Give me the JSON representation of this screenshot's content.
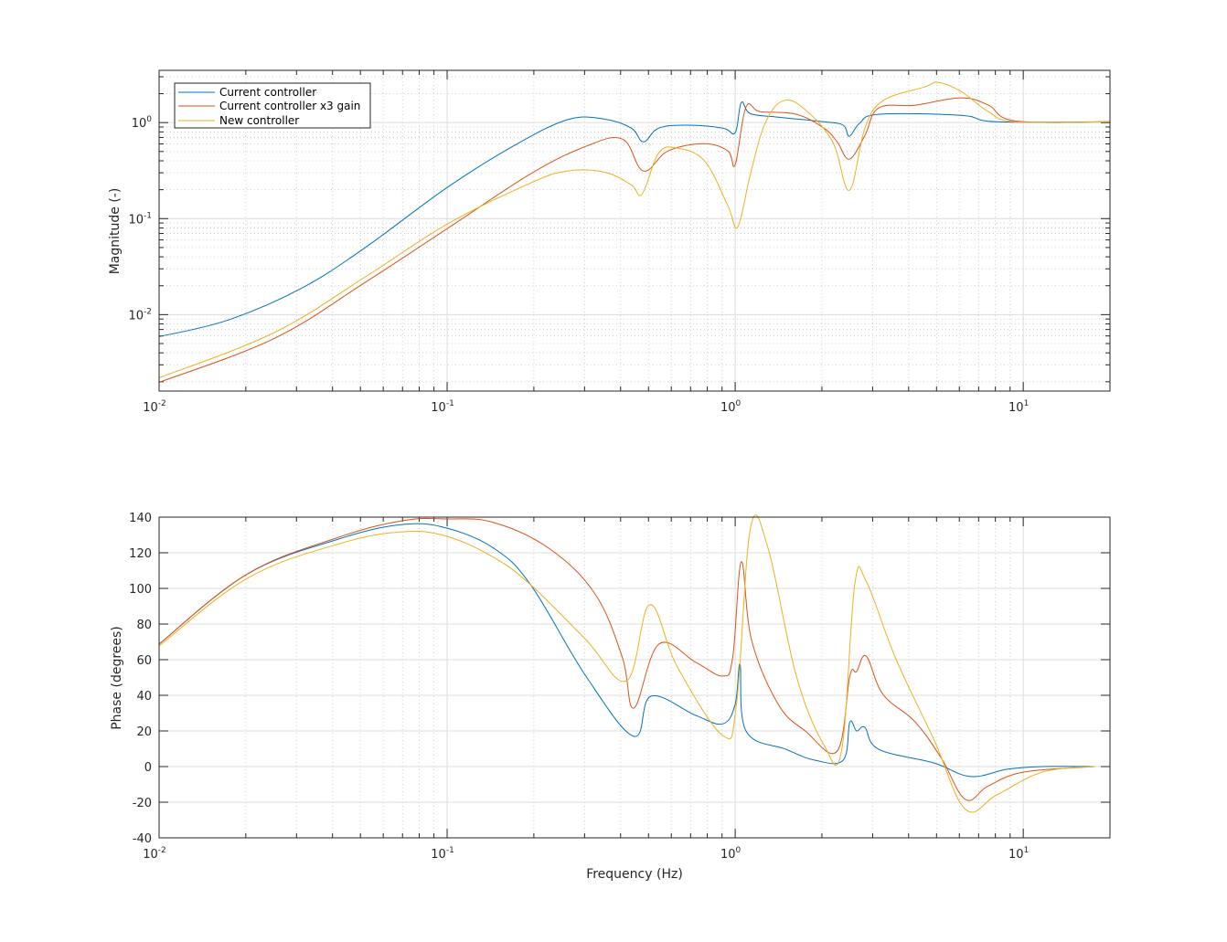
{
  "chart_data": [
    {
      "type": "line",
      "xscale": "log",
      "yscale": "log",
      "xlim": [
        0.01,
        20
      ],
      "ylim": [
        0.0016,
        3.5
      ],
      "xlabel": "",
      "ylabel": "Magnitude (-)",
      "grid": true,
      "legend_placement": "top-left",
      "xticks": [
        {
          "base": "10",
          "exp": "-2",
          "value": 0.01
        },
        {
          "base": "10",
          "exp": "-1",
          "value": 0.1
        },
        {
          "base": "10",
          "exp": "0",
          "value": 1
        },
        {
          "base": "10",
          "exp": "1",
          "value": 10
        }
      ],
      "yticks": [
        {
          "base": "10",
          "exp": "-2",
          "value": 0.01
        },
        {
          "base": "10",
          "exp": "-1",
          "value": 0.1
        },
        {
          "base": "10",
          "exp": "0",
          "value": 1
        }
      ],
      "series": [
        {
          "name": "Current controller",
          "color": "#0072BD",
          "points": [
            [
              0.01,
              0.0059
            ],
            [
              0.0174,
              0.0088
            ],
            [
              0.0313,
              0.0189
            ],
            [
              0.0523,
              0.0507
            ],
            [
              0.1,
              0.211
            ],
            [
              0.169,
              0.565
            ],
            [
              0.261,
              1.07
            ],
            [
              0.35,
              1.09
            ],
            [
              0.436,
              0.877
            ],
            [
              0.48,
              0.63
            ],
            [
              0.543,
              0.877
            ],
            [
              0.685,
              0.94
            ],
            [
              0.906,
              0.877
            ],
            [
              1.0,
              0.786
            ],
            [
              1.05,
              1.62
            ],
            [
              1.13,
              1.24
            ],
            [
              1.41,
              1.14
            ],
            [
              2.03,
              1.02
            ],
            [
              2.37,
              0.94
            ],
            [
              2.49,
              0.72
            ],
            [
              2.7,
              0.98
            ],
            [
              3.15,
              1.22
            ],
            [
              6.08,
              1.19
            ],
            [
              8.1,
              1.02
            ],
            [
              20,
              1.02
            ]
          ]
        },
        {
          "name": "Current controller x3 gain",
          "color": "#D95319",
          "points": [
            [
              0.01,
              0.00197
            ],
            [
              0.0251,
              0.00565
            ],
            [
              0.0523,
              0.022
            ],
            [
              0.1,
              0.0786
            ],
            [
              0.195,
              0.293
            ],
            [
              0.303,
              0.565
            ],
            [
              0.406,
              0.674
            ],
            [
              0.48,
              0.313
            ],
            [
              0.585,
              0.507
            ],
            [
              0.783,
              0.604
            ],
            [
              0.943,
              0.507
            ],
            [
              1.0,
              0.365
            ],
            [
              1.09,
              1.45
            ],
            [
              1.22,
              1.3
            ],
            [
              1.63,
              1.22
            ],
            [
              2.03,
              0.877
            ],
            [
              2.26,
              0.63
            ],
            [
              2.49,
              0.416
            ],
            [
              2.82,
              0.736
            ],
            [
              3.15,
              1.42
            ],
            [
              4.22,
              1.52
            ],
            [
              6.08,
              1.81
            ],
            [
              7.57,
              1.52
            ],
            [
              9.4,
              1.04
            ],
            [
              20,
              1.02
            ]
          ]
        },
        {
          "name": "New controller",
          "color": "#EDB120",
          "points": [
            [
              0.01,
              0.0022
            ],
            [
              0.0251,
              0.0065
            ],
            [
              0.0523,
              0.025
            ],
            [
              0.1,
              0.0877
            ],
            [
              0.195,
              0.235
            ],
            [
              0.261,
              0.313
            ],
            [
              0.35,
              0.306
            ],
            [
              0.436,
              0.225
            ],
            [
              0.475,
              0.18
            ],
            [
              0.543,
              0.485
            ],
            [
              0.63,
              0.54
            ],
            [
              0.783,
              0.398
            ],
            [
              0.943,
              0.136
            ],
            [
              1.02,
              0.082
            ],
            [
              1.13,
              0.293
            ],
            [
              1.27,
              0.98
            ],
            [
              1.47,
              1.69
            ],
            [
              1.75,
              1.36
            ],
            [
              2.18,
              0.63
            ],
            [
              2.49,
              0.197
            ],
            [
              2.82,
              0.877
            ],
            [
              3.26,
              1.69
            ],
            [
              4.54,
              2.35
            ],
            [
              5.07,
              2.62
            ],
            [
              6.08,
              2.11
            ],
            [
              7.57,
              1.3
            ],
            [
              9.4,
              1.02
            ],
            [
              20,
              1.02
            ]
          ]
        }
      ]
    },
    {
      "type": "line",
      "xscale": "log",
      "yscale": "linear",
      "xlim": [
        0.01,
        20
      ],
      "ylim": [
        -40,
        140
      ],
      "xlabel": "Frequency (Hz)",
      "ylabel": "Phase (degrees)",
      "grid": true,
      "xticks": [
        {
          "base": "10",
          "exp": "-2",
          "value": 0.01
        },
        {
          "base": "10",
          "exp": "-1",
          "value": 0.1
        },
        {
          "base": "10",
          "exp": "0",
          "value": 1
        },
        {
          "base": "10",
          "exp": "1",
          "value": 10
        }
      ],
      "yticks": [
        "-40",
        "-20",
        "0",
        "20",
        "40",
        "60",
        "80",
        "100",
        "120",
        "140"
      ],
      "series": [
        {
          "name": "Current controller",
          "color": "#0072BD",
          "points": [
            [
              0.01,
              68.7
            ],
            [
              0.0202,
              108
            ],
            [
              0.042,
              127.7
            ],
            [
              0.0702,
              135.9
            ],
            [
              0.1,
              133.8
            ],
            [
              0.145,
              122.6
            ],
            [
              0.195,
              102
            ],
            [
              0.303,
              50.8
            ],
            [
              0.445,
              17
            ],
            [
              0.51,
              39.5
            ],
            [
              0.73,
              28.7
            ],
            [
              0.906,
              24
            ],
            [
              1.0,
              35
            ],
            [
              1.04,
              57.4
            ],
            [
              1.09,
              20
            ],
            [
              1.5,
              9.7
            ],
            [
              1.89,
              3.6
            ],
            [
              2.37,
              3.6
            ],
            [
              2.5,
              25
            ],
            [
              2.64,
              20
            ],
            [
              2.82,
              22
            ],
            [
              3.15,
              9.7
            ],
            [
              4.9,
              2
            ],
            [
              6.56,
              -5.6
            ],
            [
              8.8,
              -1.5
            ],
            [
              11.7,
              0
            ],
            [
              17.7,
              0
            ]
          ]
        },
        {
          "name": "Current controller x3 gain",
          "color": "#D95319",
          "points": [
            [
              0.01,
              68.7
            ],
            [
              0.0202,
              108
            ],
            [
              0.042,
              128.7
            ],
            [
              0.0702,
              138
            ],
            [
              0.1,
              139
            ],
            [
              0.145,
              137
            ],
            [
              0.225,
              122.6
            ],
            [
              0.326,
              97
            ],
            [
              0.406,
              61
            ],
            [
              0.445,
              32.8
            ],
            [
              0.543,
              68.7
            ],
            [
              0.73,
              58.5
            ],
            [
              0.906,
              50.8
            ],
            [
              0.98,
              61
            ],
            [
              1.05,
              114.9
            ],
            [
              1.14,
              71
            ],
            [
              1.41,
              35
            ],
            [
              1.75,
              20
            ],
            [
              2.26,
              8.7
            ],
            [
              2.5,
              50.8
            ],
            [
              2.64,
              53.3
            ],
            [
              2.85,
              62
            ],
            [
              3.26,
              40.5
            ],
            [
              4.22,
              25
            ],
            [
              5.2,
              4.6
            ],
            [
              6.3,
              -18.5
            ],
            [
              7.57,
              -10.8
            ],
            [
              10.1,
              -3
            ],
            [
              17.7,
              0
            ]
          ]
        },
        {
          "name": "New controller",
          "color": "#EDB120",
          "points": [
            [
              0.01,
              67.7
            ],
            [
              0.0202,
              105.6
            ],
            [
              0.042,
              125
            ],
            [
              0.0702,
              131.8
            ],
            [
              0.1,
              129.2
            ],
            [
              0.145,
              117.4
            ],
            [
              0.195,
              102
            ],
            [
              0.303,
              71.3
            ],
            [
              0.42,
              48.2
            ],
            [
              0.505,
              90.8
            ],
            [
              0.63,
              55.9
            ],
            [
              0.906,
              17.4
            ],
            [
              1.01,
              35
            ],
            [
              1.13,
              133.8
            ],
            [
              1.3,
              122.6
            ],
            [
              1.63,
              50.8
            ],
            [
              2.03,
              12.3
            ],
            [
              2.34,
              8.7
            ],
            [
              2.6,
              102
            ],
            [
              2.85,
              104
            ],
            [
              3.6,
              61
            ],
            [
              4.9,
              15
            ],
            [
              6.3,
              -24
            ],
            [
              8.1,
              -15.9
            ],
            [
              11.7,
              -3
            ],
            [
              17.7,
              0
            ]
          ]
        }
      ]
    }
  ]
}
